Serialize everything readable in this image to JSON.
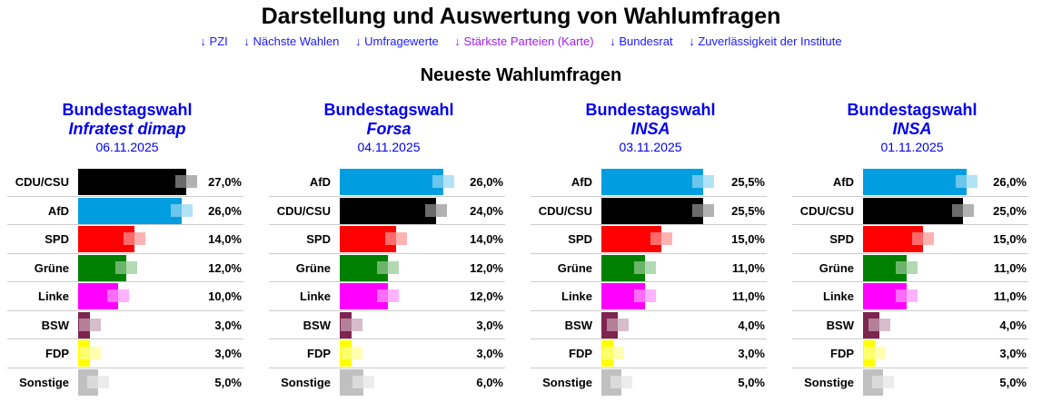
{
  "title": "Darstellung und Auswertung von Wahlumfragen",
  "nav": [
    "↓ PZI",
    "↓ Nächste Wahlen",
    "↓ Umfragewerte",
    "↓ Stärkste Parteien (Karte)",
    "↓ Bundesrat",
    "↓ Zuverlässigkeit der Institute"
  ],
  "subtitle": "Neueste Wahlumfragen",
  "colors": {
    "CDU/CSU": "#000000",
    "AfD": "#009ee0",
    "SPD": "#ff0000",
    "Grüne": "#008000",
    "Linke": "#ff00ff",
    "BSW": "#7d254f",
    "FDP": "#ffff00",
    "Sonstige": "#c0c0c0"
  },
  "polls": [
    {
      "election": "Bundestagswahl",
      "institute": "Infratest dimap",
      "date": "06.11.2025",
      "rows": [
        {
          "party": "CDU/CSU",
          "value": 27.0,
          "label": "27,0%"
        },
        {
          "party": "AfD",
          "value": 26.0,
          "label": "26,0%"
        },
        {
          "party": "SPD",
          "value": 14.0,
          "label": "14,0%"
        },
        {
          "party": "Grüne",
          "value": 12.0,
          "label": "12,0%"
        },
        {
          "party": "Linke",
          "value": 10.0,
          "label": "10,0%"
        },
        {
          "party": "BSW",
          "value": 3.0,
          "label": "3,0%"
        },
        {
          "party": "FDP",
          "value": 3.0,
          "label": "3,0%"
        },
        {
          "party": "Sonstige",
          "value": 5.0,
          "label": "5,0%"
        }
      ]
    },
    {
      "election": "Bundestagswahl",
      "institute": "Forsa",
      "date": "04.11.2025",
      "rows": [
        {
          "party": "AfD",
          "value": 26.0,
          "label": "26,0%"
        },
        {
          "party": "CDU/CSU",
          "value": 24.0,
          "label": "24,0%"
        },
        {
          "party": "SPD",
          "value": 14.0,
          "label": "14,0%"
        },
        {
          "party": "Grüne",
          "value": 12.0,
          "label": "12,0%"
        },
        {
          "party": "Linke",
          "value": 12.0,
          "label": "12,0%"
        },
        {
          "party": "BSW",
          "value": 3.0,
          "label": "3,0%"
        },
        {
          "party": "FDP",
          "value": 3.0,
          "label": "3,0%"
        },
        {
          "party": "Sonstige",
          "value": 6.0,
          "label": "6,0%"
        }
      ]
    },
    {
      "election": "Bundestagswahl",
      "institute": "INSA",
      "date": "03.11.2025",
      "rows": [
        {
          "party": "AfD",
          "value": 25.5,
          "label": "25,5%"
        },
        {
          "party": "CDU/CSU",
          "value": 25.5,
          "label": "25,5%"
        },
        {
          "party": "SPD",
          "value": 15.0,
          "label": "15,0%"
        },
        {
          "party": "Grüne",
          "value": 11.0,
          "label": "11,0%"
        },
        {
          "party": "Linke",
          "value": 11.0,
          "label": "11,0%"
        },
        {
          "party": "BSW",
          "value": 4.0,
          "label": "4,0%"
        },
        {
          "party": "FDP",
          "value": 3.0,
          "label": "3,0%"
        },
        {
          "party": "Sonstige",
          "value": 5.0,
          "label": "5,0%"
        }
      ]
    },
    {
      "election": "Bundestagswahl",
      "institute": "INSA",
      "date": "01.11.2025",
      "rows": [
        {
          "party": "AfD",
          "value": 26.0,
          "label": "26,0%"
        },
        {
          "party": "CDU/CSU",
          "value": 25.0,
          "label": "25,0%"
        },
        {
          "party": "SPD",
          "value": 15.0,
          "label": "15,0%"
        },
        {
          "party": "Grüne",
          "value": 11.0,
          "label": "11,0%"
        },
        {
          "party": "Linke",
          "value": 11.0,
          "label": "11,0%"
        },
        {
          "party": "BSW",
          "value": 4.0,
          "label": "4,0%"
        },
        {
          "party": "FDP",
          "value": 3.0,
          "label": "3,0%"
        },
        {
          "party": "Sonstige",
          "value": 5.0,
          "label": "5,0%"
        }
      ]
    }
  ]
}
